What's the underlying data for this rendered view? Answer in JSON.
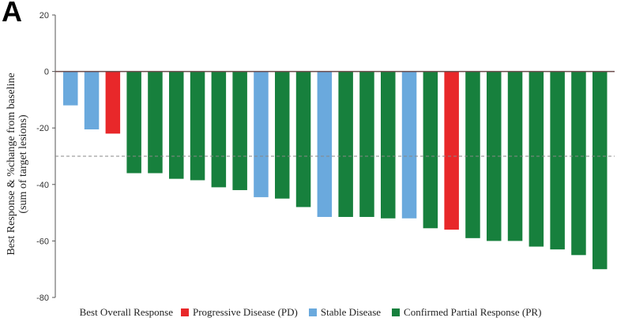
{
  "panel_label": "A",
  "colors": {
    "PD": "#e8282a",
    "SD": "#6aa9dd",
    "PR": "#17803d",
    "axis": "#555555",
    "zero_line": "#6b4a4a",
    "threshold": "#888888"
  },
  "chart_data": {
    "type": "bar",
    "ylabel": "Best Response & %change from baseline\n(sum of target lesions)",
    "ylim": [
      -80,
      20
    ],
    "yticks": [
      20,
      0,
      -20,
      -40,
      -60,
      -80
    ],
    "threshold_line": -30,
    "legend": {
      "title": "Best Overall Response",
      "placement": "bottom",
      "entries": [
        {
          "key": "PD",
          "label": "Progressive Disease (PD)"
        },
        {
          "key": "SD",
          "label": "Stable Disease"
        },
        {
          "key": "PR",
          "label": "Confirmed Partial Response (PR)"
        }
      ]
    },
    "bars": [
      {
        "value": -12,
        "response": "SD"
      },
      {
        "value": -20.5,
        "response": "SD"
      },
      {
        "value": -22,
        "response": "PD"
      },
      {
        "value": -36,
        "response": "PR"
      },
      {
        "value": -36,
        "response": "PR"
      },
      {
        "value": -38,
        "response": "PR"
      },
      {
        "value": -38.5,
        "response": "PR"
      },
      {
        "value": -41,
        "response": "PR"
      },
      {
        "value": -42,
        "response": "PR"
      },
      {
        "value": -44.5,
        "response": "SD"
      },
      {
        "value": -45,
        "response": "PR"
      },
      {
        "value": -48,
        "response": "PR"
      },
      {
        "value": -51.5,
        "response": "SD"
      },
      {
        "value": -51.5,
        "response": "PR"
      },
      {
        "value": -51.5,
        "response": "PR"
      },
      {
        "value": -52,
        "response": "PR"
      },
      {
        "value": -52,
        "response": "SD"
      },
      {
        "value": -55.5,
        "response": "PR"
      },
      {
        "value": -56,
        "response": "PD"
      },
      {
        "value": -59,
        "response": "PR"
      },
      {
        "value": -60,
        "response": "PR"
      },
      {
        "value": -60,
        "response": "PR"
      },
      {
        "value": -62,
        "response": "PR"
      },
      {
        "value": -63,
        "response": "PR"
      },
      {
        "value": -65,
        "response": "PR"
      },
      {
        "value": -70,
        "response": "PR"
      }
    ]
  }
}
